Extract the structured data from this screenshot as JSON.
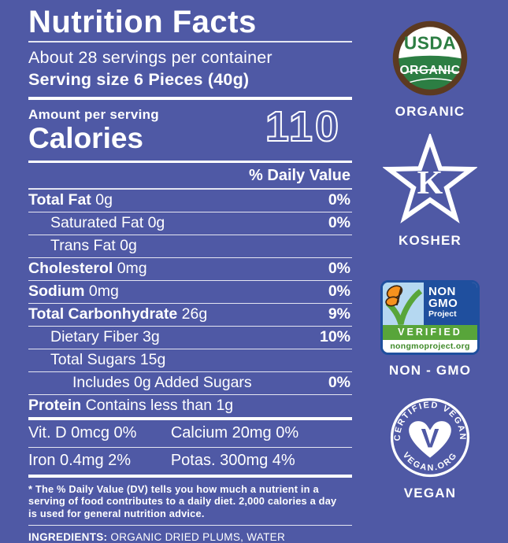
{
  "colors": {
    "background": "#4f59a5",
    "text": "#ffffff",
    "usda_brown": "#5c3a21",
    "usda_green": "#2c7e43",
    "ngp_blue": "#1f4f9e",
    "ngp_sky": "#b5d8f1",
    "ngp_green": "#58a53a",
    "ngp_url_green": "#3f8a28",
    "butterfly_orange": "#f6921e",
    "butterfly_outline": "#3a2410"
  },
  "label": {
    "title": "Nutrition Facts",
    "servings_per_container": "About 28 servings per container",
    "serving_size": "Serving size 6 Pieces (40g)",
    "amount_per_serving": "Amount per serving",
    "calories_label": "Calories",
    "calories_value": "110",
    "daily_value_header": "% Daily Value",
    "rows": [
      {
        "name": "Total Fat",
        "amount": "0g",
        "dv": "0%",
        "bold": true,
        "indent": 0
      },
      {
        "name": "Saturated Fat",
        "amount": "0g",
        "dv": "0%",
        "bold": false,
        "indent": 1
      },
      {
        "name": "Trans Fat",
        "amount": "0g",
        "dv": "",
        "bold": false,
        "indent": 1
      },
      {
        "name": "Cholesterol",
        "amount": "0mg",
        "dv": "0%",
        "bold": true,
        "indent": 0
      },
      {
        "name": "Sodium",
        "amount": "0mg",
        "dv": "0%",
        "bold": true,
        "indent": 0
      },
      {
        "name": "Total Carbonhydrate",
        "amount": "26g",
        "dv": "9%",
        "bold": true,
        "indent": 0
      },
      {
        "name": "Dietary Fiber",
        "amount": "3g",
        "dv": "10%",
        "bold": false,
        "indent": 1
      },
      {
        "name": "Total Sugars",
        "amount": "15g",
        "dv": "",
        "bold": false,
        "indent": 1
      },
      {
        "name": "Includes 0g Added Sugars",
        "amount": "",
        "dv": "0%",
        "bold": false,
        "indent": 2
      },
      {
        "name": "Protein",
        "amount": "Contains less than 1g",
        "dv": "",
        "bold": true,
        "indent": 0
      }
    ],
    "micronutrients": [
      [
        "Vit. D 0mcg 0%",
        "Calcium 20mg 0%"
      ],
      [
        "Iron 0.4mg 2%",
        "Potas. 300mg 4%"
      ]
    ],
    "footnote": "* The % Daily Value (DV) tells you how much a nutrient in a serving of food contributes to a daily diet. 2,000 calories a day is used for general nutrition advice.",
    "ingredients_label": "INGREDIENTS:",
    "ingredients_value": "ORGANIC DRIED PLUMS, WATER"
  },
  "badges": {
    "usda": {
      "word_top": "USDA",
      "word_bottom": "ORGANIC",
      "caption": "ORGANIC"
    },
    "kosher": {
      "letter": "K",
      "caption": "KOSHER"
    },
    "nongmo": {
      "line1": "NON",
      "line2": "GMO",
      "line3": "Project",
      "verified": "VERIFIED",
      "url": "nongmoproject.org",
      "caption": "NON - GMO"
    },
    "vegan": {
      "arc_top": "CERTIFIED VEGAN",
      "arc_bottom": "VEGAN.ORG",
      "letter": "V",
      "caption": "VEGAN"
    }
  }
}
